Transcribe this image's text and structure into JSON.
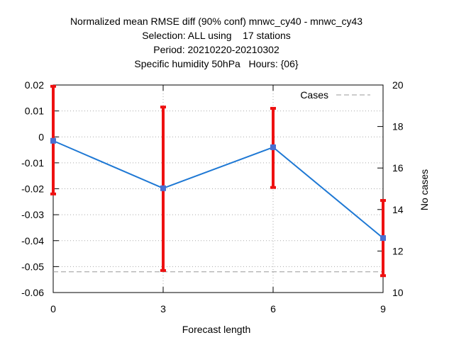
{
  "chart_data": {
    "type": "line",
    "title_lines": [
      "Normalized mean RMSE diff (90% conf) mnwc_cy40 - mnwc_cy43",
      "Selection: ALL using    17 stations",
      "Period: 20210220-20210302",
      "Specific humidity 50hPa   Hours: {06}"
    ],
    "xlabel": "Forecast length",
    "ylabel": "",
    "y2label": "No cases",
    "xlim": [
      0,
      9
    ],
    "ylim": [
      -0.06,
      0.02
    ],
    "y2lim": [
      10,
      20
    ],
    "xticks": [
      "0",
      "3",
      "6",
      "9"
    ],
    "yticks": [
      "0.02",
      "0.01",
      "0",
      "-0.01",
      "-0.02",
      "-0.03",
      "-0.04",
      "-0.05",
      "-0.06"
    ],
    "y2ticks": [
      "20",
      "18",
      "16",
      "14",
      "12",
      "10"
    ],
    "grid": true,
    "legend_position": "top-right",
    "colors": {
      "diff": "#1e78d4",
      "error": "#ee1111",
      "cases": "#999999"
    },
    "series": [
      {
        "x": [
          0,
          3,
          6,
          9
        ],
        "values": [
          -0.0015,
          -0.0198,
          -0.004,
          -0.039
        ],
        "ci_low": [
          -0.022,
          -0.0515,
          -0.0195,
          -0.0535
        ],
        "ci_high": [
          0.0195,
          0.0115,
          0.011,
          -0.0245
        ]
      },
      {
        "name": "Cases",
        "axis": "y2",
        "x": [
          0,
          3,
          6,
          9
        ],
        "values": [
          11,
          11,
          11,
          11
        ]
      }
    ]
  }
}
